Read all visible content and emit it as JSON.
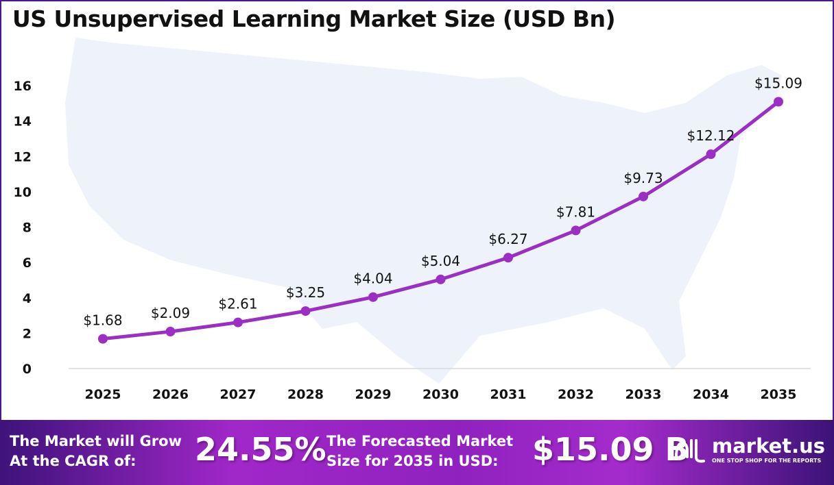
{
  "title": "US Unsupervised Learning Market Size (USD Bn)",
  "chart_data": {
    "type": "line",
    "title": "US Unsupervised Learning Market Size (USD Bn)",
    "categories": [
      "2025",
      "2026",
      "2027",
      "2028",
      "2029",
      "2030",
      "2031",
      "2032",
      "2033",
      "2034",
      "2035"
    ],
    "values": [
      1.68,
      2.09,
      2.61,
      3.25,
      4.04,
      5.04,
      6.27,
      7.81,
      9.73,
      12.12,
      15.09
    ],
    "data_labels": [
      "$1.68",
      "$2.09",
      "$2.61",
      "$3.25",
      "$4.04",
      "$5.04",
      "$6.27",
      "$7.81",
      "$9.73",
      "$12.12",
      "$15.09"
    ],
    "yticks": [
      "0",
      "2",
      "4",
      "6",
      "8",
      "10",
      "12",
      "14",
      "16"
    ],
    "ylim": [
      0,
      16
    ],
    "grid": false,
    "line_color": "#9b2fc4",
    "background_image": "us-map-silhouette"
  },
  "footer": {
    "cagr_label_1": "The Market will Grow",
    "cagr_label_2": "At the CAGR of:",
    "cagr_value": "24.55%",
    "forecast_label_1": "The Forecasted Market",
    "forecast_label_2": "Size for 2035 in USD:",
    "forecast_value": "$15.09 B",
    "logo_name": "market.us",
    "logo_tagline": "ONE STOP SHOP FOR THE REPORTS"
  }
}
